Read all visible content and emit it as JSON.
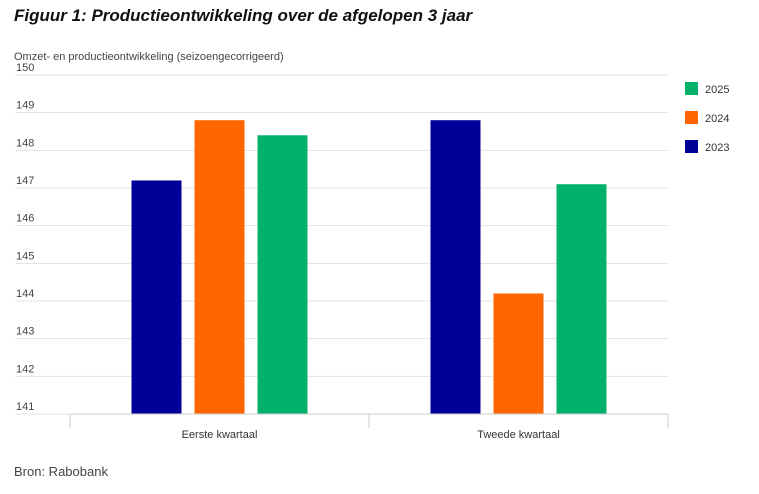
{
  "figure": {
    "title": "Figuur 1: Productieontwikkeling over de afgelopen 3 jaar",
    "source": "Bron: Rabobank"
  },
  "chart_data": {
    "type": "bar",
    "title": "Figuur 1: Productieontwikkeling over de afgelopen 3 jaar",
    "ylabel": "Omzet- en productieontwikkeling (seizoengecorrigeerd)",
    "xlabel": "",
    "categories": [
      "Eerste kwartaal",
      "Tweede kwartaal"
    ],
    "ylim": [
      141,
      150
    ],
    "yticks": [
      141,
      142,
      143,
      144,
      145,
      146,
      147,
      148,
      149,
      150
    ],
    "grid": true,
    "legend_position": "right",
    "series": [
      {
        "name": "2023",
        "color": "#000099",
        "values": [
          147.2,
          148.8
        ]
      },
      {
        "name": "2024",
        "color": "#ff6600",
        "values": [
          148.8,
          144.2
        ]
      },
      {
        "name": "2025",
        "color": "#00b06b",
        "values": [
          148.4,
          147.1
        ]
      }
    ],
    "legend_order": [
      "2025",
      "2024",
      "2023"
    ]
  }
}
